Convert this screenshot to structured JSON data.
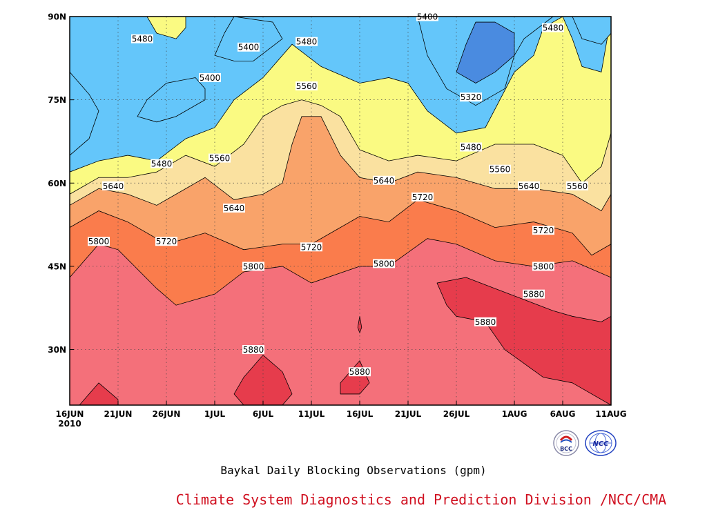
{
  "chart_data": {
    "type": "heatmap",
    "subtype": "filled-contour",
    "title": "Baykal Daily Blocking Observations (gpm)",
    "credit": "Climate System Diagnostics and Prediction Division /NCC/CMA",
    "x_ticks": [
      {
        "label": "16JUN",
        "day": 0,
        "sub": "2010"
      },
      {
        "label": "21JUN",
        "day": 5
      },
      {
        "label": "26JUN",
        "day": 10
      },
      {
        "label": "1JUL",
        "day": 15
      },
      {
        "label": "6JUL",
        "day": 20
      },
      {
        "label": "11JUL",
        "day": 25
      },
      {
        "label": "16JUL",
        "day": 30
      },
      {
        "label": "21JUL",
        "day": 35
      },
      {
        "label": "26JUL",
        "day": 40
      },
      {
        "label": "1AUG",
        "day": 46
      },
      {
        "label": "6AUG",
        "day": 51
      },
      {
        "label": "11AUG",
        "day": 56
      }
    ],
    "x_range": [
      0,
      56
    ],
    "y_ticks": [
      {
        "label": "30N",
        "lat": 30
      },
      {
        "label": "45N",
        "lat": 45
      },
      {
        "label": "60N",
        "lat": 60
      },
      {
        "label": "75N",
        "lat": 75
      },
      {
        "label": "90N",
        "lat": 90
      }
    ],
    "y_range": [
      20,
      90
    ],
    "grid": "dotted",
    "levels": [
      5320,
      5400,
      5480,
      5560,
      5640,
      5720,
      5800,
      5880
    ],
    "level_colors": [
      "#3c3ce6",
      "#4a8be0",
      "#64c6fa",
      "#fafa82",
      "#fae1a0",
      "#f9a36a",
      "#fa7c4c",
      "#f4707a",
      "#e63c4c"
    ],
    "bands": [
      {
        "level": 5800,
        "boundary": [
          [
            0,
            43
          ],
          [
            3,
            49
          ],
          [
            5,
            48
          ],
          [
            9,
            41
          ],
          [
            11,
            38
          ],
          [
            15,
            40
          ],
          [
            18,
            44
          ],
          [
            22,
            45
          ],
          [
            25,
            42
          ],
          [
            30,
            45
          ],
          [
            33,
            45
          ],
          [
            37,
            50
          ],
          [
            40,
            49
          ],
          [
            44,
            46
          ],
          [
            48,
            45
          ],
          [
            52,
            46
          ],
          [
            56,
            43
          ]
        ]
      },
      {
        "level": 5720,
        "boundary": [
          [
            0,
            52
          ],
          [
            3,
            55
          ],
          [
            6,
            53
          ],
          [
            10,
            49
          ],
          [
            14,
            51
          ],
          [
            18,
            48
          ],
          [
            22,
            49
          ],
          [
            25,
            49
          ],
          [
            28,
            52
          ],
          [
            30,
            54
          ],
          [
            33,
            53
          ],
          [
            36,
            57
          ],
          [
            40,
            55
          ],
          [
            44,
            52
          ],
          [
            48,
            53
          ],
          [
            52,
            51
          ],
          [
            54,
            47
          ],
          [
            56,
            49
          ]
        ]
      },
      {
        "level": 5640,
        "boundary": [
          [
            0,
            56
          ],
          [
            3,
            59
          ],
          [
            6,
            58
          ],
          [
            9,
            56
          ],
          [
            11,
            58
          ],
          [
            14,
            61
          ],
          [
            17,
            57
          ],
          [
            20,
            58
          ],
          [
            22,
            60
          ],
          [
            23,
            67
          ],
          [
            24,
            72
          ],
          [
            26,
            72
          ],
          [
            28,
            65
          ],
          [
            30,
            61
          ],
          [
            33,
            60
          ],
          [
            36,
            62
          ],
          [
            40,
            61
          ],
          [
            44,
            59
          ],
          [
            48,
            59
          ],
          [
            52,
            58
          ],
          [
            55,
            55
          ],
          [
            56,
            58
          ]
        ]
      },
      {
        "level": 5560,
        "boundary": [
          [
            0,
            58
          ],
          [
            3,
            61
          ],
          [
            6,
            61
          ],
          [
            9,
            62
          ],
          [
            12,
            65
          ],
          [
            15,
            63
          ],
          [
            18,
            67
          ],
          [
            20,
            72
          ],
          [
            22,
            74
          ],
          [
            24,
            75
          ],
          [
            26,
            74
          ],
          [
            28,
            72
          ],
          [
            30,
            66
          ],
          [
            33,
            64
          ],
          [
            36,
            65
          ],
          [
            40,
            64
          ],
          [
            44,
            67
          ],
          [
            48,
            67
          ],
          [
            51,
            65
          ],
          [
            53,
            60
          ],
          [
            55,
            63
          ],
          [
            56,
            69
          ]
        ]
      },
      {
        "level": 5480,
        "boundary": [
          [
            0,
            62
          ],
          [
            3,
            64
          ],
          [
            6,
            65
          ],
          [
            9,
            64
          ],
          [
            12,
            68
          ],
          [
            15,
            70
          ],
          [
            17,
            75
          ],
          [
            20,
            79
          ],
          [
            23,
            85
          ],
          [
            26,
            81
          ],
          [
            30,
            78
          ],
          [
            33,
            79
          ],
          [
            35,
            78
          ],
          [
            37,
            73
          ],
          [
            40,
            69
          ],
          [
            43,
            70
          ],
          [
            46,
            80
          ],
          [
            48,
            83
          ],
          [
            49,
            88
          ],
          [
            51,
            90
          ],
          [
            52,
            86
          ],
          [
            53,
            81
          ],
          [
            55,
            80
          ],
          [
            56,
            90
          ]
        ]
      }
    ],
    "islands": [
      {
        "level": 5400,
        "points": [
          [
            0,
            65
          ],
          [
            2,
            68
          ],
          [
            3,
            73
          ],
          [
            2,
            76
          ],
          [
            0,
            80
          ]
        ]
      },
      {
        "level": 5400,
        "points": [
          [
            9,
            71
          ],
          [
            11,
            72
          ],
          [
            14,
            75
          ],
          [
            14,
            77
          ],
          [
            13,
            79
          ],
          [
            10,
            78
          ],
          [
            8,
            75
          ],
          [
            7,
            72
          ]
        ]
      },
      {
        "level": 5400,
        "points": [
          [
            15,
            83
          ],
          [
            17,
            82
          ],
          [
            19,
            82
          ],
          [
            22,
            86
          ],
          [
            21,
            89
          ],
          [
            17,
            90
          ],
          [
            16,
            87
          ]
        ]
      },
      {
        "level": 5400,
        "points": [
          [
            36,
            90
          ],
          [
            37,
            83
          ],
          [
            39,
            77
          ],
          [
            42,
            74
          ],
          [
            45,
            77
          ],
          [
            46,
            83
          ],
          [
            47,
            86
          ],
          [
            50,
            90
          ]
        ]
      },
      {
        "level": 5400,
        "points": [
          [
            52,
            90
          ],
          [
            53,
            86
          ],
          [
            55,
            85
          ],
          [
            56,
            87
          ],
          [
            56,
            90
          ]
        ]
      },
      {
        "level": 5480,
        "points": [
          [
            8,
            90
          ],
          [
            9,
            87
          ],
          [
            11,
            86
          ],
          [
            12,
            88
          ],
          [
            12,
            90
          ]
        ]
      },
      {
        "level": 5320,
        "points": [
          [
            40,
            80
          ],
          [
            41,
            85
          ],
          [
            42,
            89
          ],
          [
            44,
            89
          ],
          [
            46,
            87
          ],
          [
            46,
            83
          ],
          [
            44,
            80
          ],
          [
            42,
            78
          ]
        ]
      },
      {
        "level": 5880,
        "points": [
          [
            1,
            20
          ],
          [
            3,
            24
          ],
          [
            5,
            21
          ],
          [
            5,
            20
          ]
        ]
      },
      {
        "level": 5880,
        "points": [
          [
            17,
            22
          ],
          [
            18,
            25
          ],
          [
            20,
            29
          ],
          [
            22,
            26
          ],
          [
            23,
            22
          ],
          [
            22,
            20
          ],
          [
            18,
            20
          ]
        ]
      },
      {
        "level": 5880,
        "points": [
          [
            28,
            24
          ],
          [
            29,
            26
          ],
          [
            30,
            28
          ],
          [
            31,
            24
          ],
          [
            30,
            22
          ],
          [
            28,
            22
          ]
        ]
      },
      {
        "level": 5880,
        "points": [
          [
            29.8,
            34
          ],
          [
            30,
            36
          ],
          [
            30.2,
            34
          ],
          [
            30,
            33
          ]
        ]
      },
      {
        "level": 5880,
        "points": [
          [
            39,
            38
          ],
          [
            38,
            42
          ],
          [
            41,
            43
          ],
          [
            44,
            41
          ],
          [
            47,
            39
          ],
          [
            50,
            37
          ],
          [
            52,
            36
          ],
          [
            55,
            35
          ],
          [
            56,
            36
          ],
          [
            56,
            20
          ],
          [
            52,
            24
          ],
          [
            49,
            25
          ],
          [
            45,
            30
          ],
          [
            43,
            35
          ],
          [
            40,
            36
          ]
        ]
      }
    ],
    "contour_labels": [
      {
        "text": "5480",
        "day": 7.5,
        "lat": 86
      },
      {
        "text": "5400",
        "day": 18.5,
        "lat": 84.5
      },
      {
        "text": "5480",
        "day": 24.5,
        "lat": 85.5
      },
      {
        "text": "5400",
        "day": 37,
        "lat": 90
      },
      {
        "text": "5480",
        "day": 50,
        "lat": 88
      },
      {
        "text": "5400",
        "day": 14.5,
        "lat": 79
      },
      {
        "text": "5560",
        "day": 24.5,
        "lat": 77.5
      },
      {
        "text": "5320",
        "day": 41.5,
        "lat": 75.5
      },
      {
        "text": "5480",
        "day": 41.5,
        "lat": 66.5
      },
      {
        "text": "5480",
        "day": 9.5,
        "lat": 63.5
      },
      {
        "text": "5560",
        "day": 15.5,
        "lat": 64.5
      },
      {
        "text": "5560",
        "day": 44.5,
        "lat": 62.5
      },
      {
        "text": "5640",
        "day": 4.5,
        "lat": 59.5
      },
      {
        "text": "5640",
        "day": 32.5,
        "lat": 60.5
      },
      {
        "text": "5640",
        "day": 47.5,
        "lat": 59.5
      },
      {
        "text": "5560",
        "day": 52.5,
        "lat": 59.5
      },
      {
        "text": "5720",
        "day": 36.5,
        "lat": 57.5
      },
      {
        "text": "5640",
        "day": 17,
        "lat": 55.5
      },
      {
        "text": "5720",
        "day": 49,
        "lat": 51.5
      },
      {
        "text": "5800",
        "day": 3,
        "lat": 49.5
      },
      {
        "text": "5720",
        "day": 10,
        "lat": 49.5
      },
      {
        "text": "5720",
        "day": 25,
        "lat": 48.5
      },
      {
        "text": "5800",
        "day": 19,
        "lat": 45
      },
      {
        "text": "5800",
        "day": 32.5,
        "lat": 45.5
      },
      {
        "text": "5800",
        "day": 49,
        "lat": 45
      },
      {
        "text": "5880",
        "day": 48,
        "lat": 40
      },
      {
        "text": "5880",
        "day": 43,
        "lat": 35
      },
      {
        "text": "5880",
        "day": 19,
        "lat": 30
      },
      {
        "text": "5880",
        "day": 30,
        "lat": 26
      }
    ]
  },
  "logos": [
    {
      "name": "bcc-logo",
      "text": "BCC"
    },
    {
      "name": "ncc-logo",
      "text": "NCC"
    }
  ]
}
